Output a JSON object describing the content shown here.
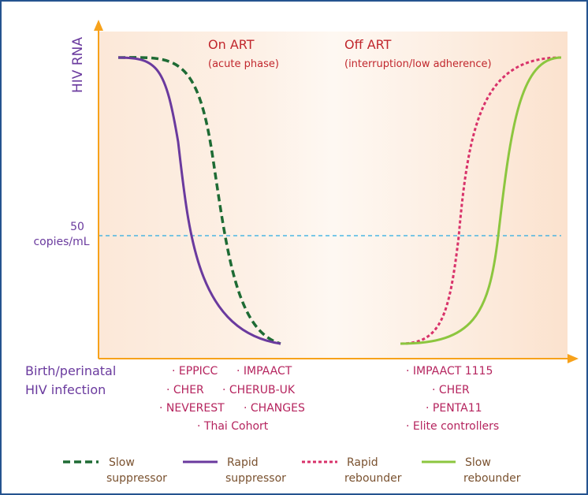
{
  "chart_data": {
    "type": "line",
    "ylabel": "HIV RNA",
    "xlabel": "Birth/perinatal\nHIV infection",
    "threshold": {
      "value_label": "50",
      "unit_label": "copies/mL",
      "color": "#29ABE2"
    },
    "phases": [
      {
        "title": "On ART",
        "subtitle": "(acute phase)"
      },
      {
        "title": "Off ART",
        "subtitle": "(interruption/low adherence)"
      }
    ],
    "series": [
      {
        "name": "Slow suppressor",
        "color": "#1E6B34",
        "style": "dashed",
        "phase": "On ART",
        "direction": "decline"
      },
      {
        "name": "Rapid suppressor",
        "color": "#6A3A9E",
        "style": "solid",
        "phase": "On ART",
        "direction": "decline"
      },
      {
        "name": "Rapid rebounder",
        "color": "#D8326A",
        "style": "dotted",
        "phase": "Off ART",
        "direction": "rise"
      },
      {
        "name": "Slow rebounder",
        "color": "#8CC63F",
        "style": "solid",
        "phase": "Off ART",
        "direction": "rise"
      }
    ],
    "studies_on_art": [
      "EPPICC",
      "IMPAACT",
      "CHER",
      "CHERUB-UK",
      "NEVEREST",
      "CHANGES",
      "Thai Cohort"
    ],
    "studies_off_art": [
      "IMPAACT 1115",
      "CHER",
      "PENTA11",
      "Elite controllers"
    ],
    "legend_position": "bottom",
    "grid": false
  },
  "legend": [
    {
      "line1": "Slow",
      "line2": "suppressor"
    },
    {
      "line1": "Rapid",
      "line2": "suppressor"
    },
    {
      "line1": "Rapid",
      "line2": "rebounder"
    },
    {
      "line1": "Slow",
      "line2": "rebounder"
    }
  ],
  "colors": {
    "axis": "#F7A21B",
    "panel": "#FCE7D6",
    "ylabel": "#6A3A9E",
    "phase_text": "#C1272D",
    "study_text": "#B5245E",
    "legend_text": "#7A5230",
    "border": "#24538F"
  }
}
